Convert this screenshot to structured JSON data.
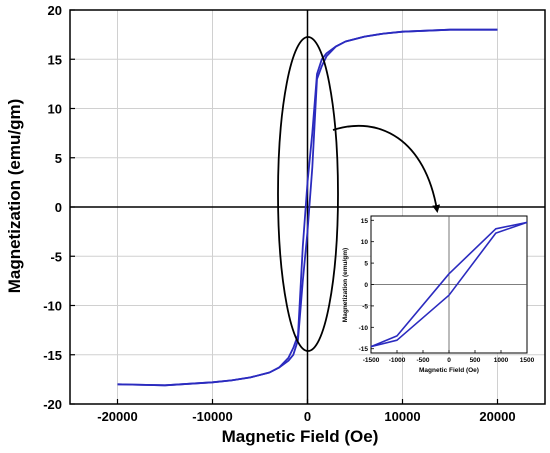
{
  "chart_data": [
    {
      "type": "line",
      "xlabel": "Magnetic Field (Oe)",
      "ylabel": "Magnetization (emu/gm)",
      "xlim": [
        -25000,
        25000
      ],
      "ylim": [
        -20,
        20
      ],
      "xticks": [
        -20000,
        -10000,
        0,
        10000,
        20000
      ],
      "yticks": [
        -20,
        -15,
        -10,
        -5,
        0,
        5,
        10,
        15,
        20
      ],
      "xtick_labels": [
        "-20000",
        "-10000",
        "0",
        "10000",
        "20000"
      ],
      "ytick_labels": [
        "-20",
        "-15",
        "-10",
        "-5",
        "0",
        "5",
        "10",
        "15",
        "20"
      ],
      "grid": true,
      "line_color": "#2b2bbf",
      "series": [
        {
          "x": [
            -20000,
            -15000,
            -10000,
            -8000,
            -6000,
            -4000,
            -3000,
            -2000,
            -1500,
            -1000,
            -500,
            0,
            500,
            1000,
            1500,
            2000,
            3000,
            4000,
            6000,
            8000,
            10000,
            15000,
            20000
          ],
          "y": [
            -18.0,
            -18.1,
            -17.8,
            -17.6,
            -17.3,
            -16.8,
            -16.3,
            -15.6,
            -15.0,
            -13.5,
            -7.5,
            -2.5,
            4.0,
            13.0,
            14.3,
            15.3,
            16.3,
            16.8,
            17.3,
            17.6,
            17.8,
            18.0,
            18.0
          ]
        },
        {
          "x": [
            20000,
            15000,
            10000,
            8000,
            6000,
            4000,
            3000,
            2000,
            1500,
            1000,
            500,
            0,
            -500,
            -1000,
            -1500,
            -2000,
            -3000,
            -4000,
            -6000,
            -8000,
            -10000,
            -15000,
            -20000
          ],
          "y": [
            18.0,
            18.0,
            17.8,
            17.6,
            17.3,
            16.8,
            16.3,
            15.6,
            15.0,
            13.5,
            7.5,
            2.5,
            -4.0,
            -13.0,
            -14.3,
            -15.3,
            -16.3,
            -16.8,
            -17.3,
            -17.6,
            -17.8,
            -18.1,
            -18.0
          ]
        }
      ]
    },
    {
      "type": "line",
      "xlabel": "Magnetic Field (Oe)",
      "ylabel": "Magnetization (emu/gm)",
      "xlim": [
        -1500,
        1500
      ],
      "ylim": [
        -16,
        16
      ],
      "xticks": [
        -1500,
        -1000,
        -500,
        0,
        500,
        1000,
        1500
      ],
      "yticks": [
        -15,
        -10,
        -5,
        0,
        5,
        10,
        15
      ],
      "xtick_labels": [
        "-1500",
        "-1000",
        "-500",
        "0",
        "500",
        "1000",
        "1500"
      ],
      "ytick_labels": [
        "-15",
        "-10",
        "-5",
        "0",
        "5",
        "10",
        "15"
      ],
      "line_color": "#2b2bbf",
      "series": [
        {
          "x": [
            -1500,
            -1000,
            0,
            900,
            1500
          ],
          "y": [
            -14.5,
            -13.0,
            -2.5,
            12.0,
            14.5
          ]
        },
        {
          "x": [
            1500,
            900,
            0,
            -1000,
            -1500
          ],
          "y": [
            14.5,
            13.0,
            2.5,
            -12.0,
            -14.5
          ]
        }
      ]
    }
  ]
}
